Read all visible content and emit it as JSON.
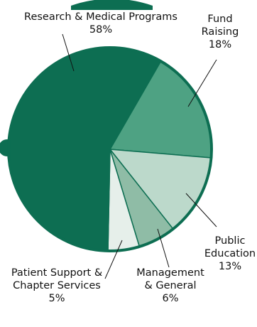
{
  "chart_data": {
    "type": "pie",
    "slices": [
      {
        "label_lines": [
          "Research & Medical Programs"
        ],
        "value_label": "58%",
        "value": 58,
        "color": "#0d6e52"
      },
      {
        "label_lines": [
          "Fund",
          "Raising"
        ],
        "value_label": "18%",
        "value": 18,
        "color": "#4ea283"
      },
      {
        "label_lines": [
          "Public",
          "Education"
        ],
        "value_label": "13%",
        "value": 13,
        "color": "#bcd9cb"
      },
      {
        "label_lines": [
          "Management",
          "& General"
        ],
        "value_label": "6%",
        "value": 6,
        "color": "#8fbca6"
      },
      {
        "label_lines": [
          "Patient Support &",
          "Chapter Services"
        ],
        "value_label": "5%",
        "value": 5,
        "color": "#e6efea"
      }
    ],
    "colors": {
      "accent": "#0d6e52",
      "outline": "#0d6e52",
      "leader_line": "#111111"
    }
  }
}
